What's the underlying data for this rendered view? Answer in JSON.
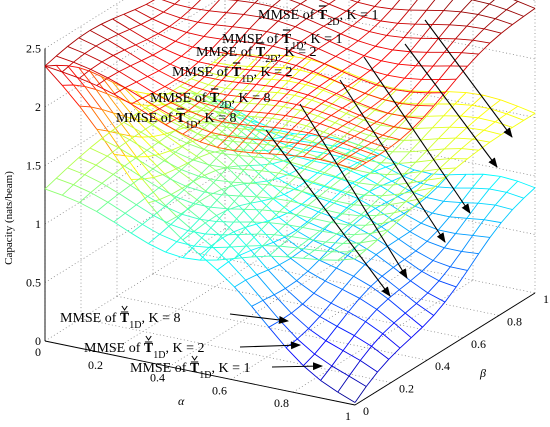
{
  "chart_data": {
    "type": "surface3d",
    "zlabel": "Capacity (nats/beam)",
    "xlabel": "α",
    "ylabel": "β",
    "xlim": [
      0,
      1
    ],
    "ylim": [
      0,
      1
    ],
    "zlim": [
      0,
      2.5
    ],
    "x_ticks": [
      "0",
      "0.2",
      "0.4",
      "0.6",
      "0.8",
      "1"
    ],
    "y_ticks": [
      "0",
      "0.2",
      "0.4",
      "0.6",
      "0.8",
      "1"
    ],
    "z_ticks": [
      "0",
      "0.5",
      "1",
      "1.5",
      "2",
      "2.5"
    ],
    "grid": true,
    "surfaces": [
      {
        "name": "MMSE of T2D, K = 1",
        "at_alpha0": 2.35,
        "at_alpha1_beta1": 2.45
      },
      {
        "name": "MMSE of T2D, K = 8",
        "at_alpha0": 1.3,
        "at_alpha1_beta1": 1.55
      },
      {
        "name": "MMSE of T1D (check), K = 1",
        "at_alpha0": 2.35,
        "at_alpha1_beta0": 0.0
      }
    ],
    "annotations": [
      {
        "prefix": "MMSE of ",
        "sym": "T",
        "accent": "bar",
        "sub": "2D",
        "suffix": ", K = 1"
      },
      {
        "prefix": "MMSE of ",
        "sym": "T",
        "accent": "bar",
        "sub": "1D",
        "suffix": ", K = 1"
      },
      {
        "prefix": "MMSE of ",
        "sym": "T",
        "accent": "bar",
        "sub": "2D",
        "suffix": ", K = 2"
      },
      {
        "prefix": "MMSE of ",
        "sym": "T",
        "accent": "bar",
        "sub": "1D",
        "suffix": ", K = 2"
      },
      {
        "prefix": "MMSE of ",
        "sym": "T",
        "accent": "bar",
        "sub": "2D",
        "suffix": ", K = 8"
      },
      {
        "prefix": "MMSE of ",
        "sym": "T",
        "accent": "bar",
        "sub": "1D",
        "suffix": ", K = 8"
      },
      {
        "prefix": "MMSE of ",
        "sym": "T",
        "accent": "check",
        "sub": "1D",
        "suffix": ", K = 8"
      },
      {
        "prefix": "MMSE of ",
        "sym": "T",
        "accent": "check",
        "sub": "1D",
        "suffix": ", K = 2"
      },
      {
        "prefix": "MMSE of ",
        "sym": "T",
        "accent": "check",
        "sub": "1D",
        "suffix": ", K = 1"
      }
    ]
  }
}
